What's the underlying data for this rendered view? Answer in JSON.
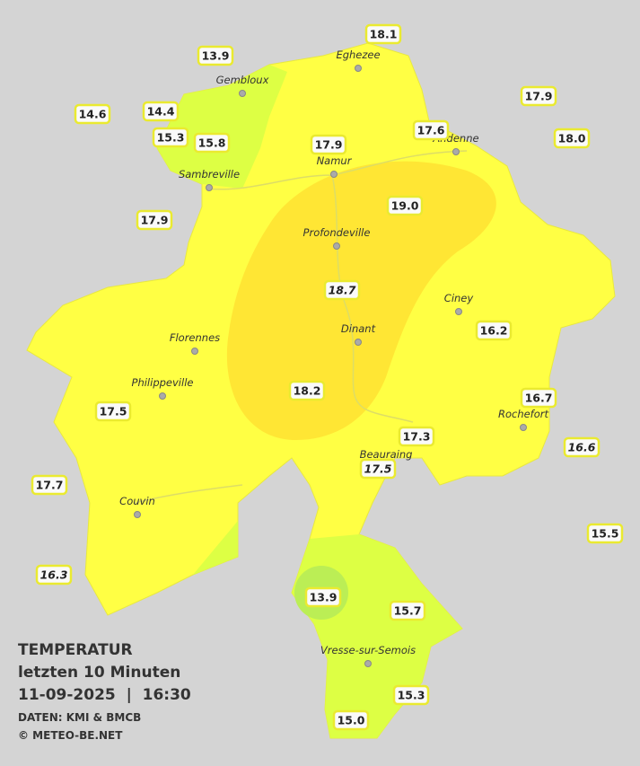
{
  "legend": {
    "title": "TEMPERATUR",
    "period": "letzten 10 Minuten",
    "timestamp": "11-09-2025  |  16:30",
    "source": "DATEN: KMI & BMCB",
    "credit": "© METEO-BE.NET"
  },
  "towns": [
    "Eghezee",
    "Gembloux",
    "Andenne",
    "Namur",
    "Sambreville",
    "Profondeville",
    "Ciney",
    "Florennes",
    "Dinant",
    "Philippeville",
    "Rochefort",
    "Beauraing",
    "Couvin",
    "Vresse-sur-Semois"
  ],
  "readings": [
    {
      "text": "13.9"
    },
    {
      "text": "18.1"
    },
    {
      "text": "14.6"
    },
    {
      "text": "14.4"
    },
    {
      "text": "17.9"
    },
    {
      "text": "15.3"
    },
    {
      "text": "15.8"
    },
    {
      "text": "17.9"
    },
    {
      "text": "17.6"
    },
    {
      "text": "18.0"
    },
    {
      "text": "17.9"
    },
    {
      "text": "19.0"
    },
    {
      "text": "18.7",
      "italic": true
    },
    {
      "text": "16.2"
    },
    {
      "text": "17.5"
    },
    {
      "text": "18.2"
    },
    {
      "text": "16.7"
    },
    {
      "text": "17.3"
    },
    {
      "text": "16.6",
      "italic": true
    },
    {
      "text": "17.5",
      "italic": true
    },
    {
      "text": "17.7"
    },
    {
      "text": "15.5"
    },
    {
      "text": "16.3",
      "italic": true
    },
    {
      "text": "13.9"
    },
    {
      "text": "15.7"
    },
    {
      "text": "15.3"
    },
    {
      "text": "15.0"
    }
  ]
}
